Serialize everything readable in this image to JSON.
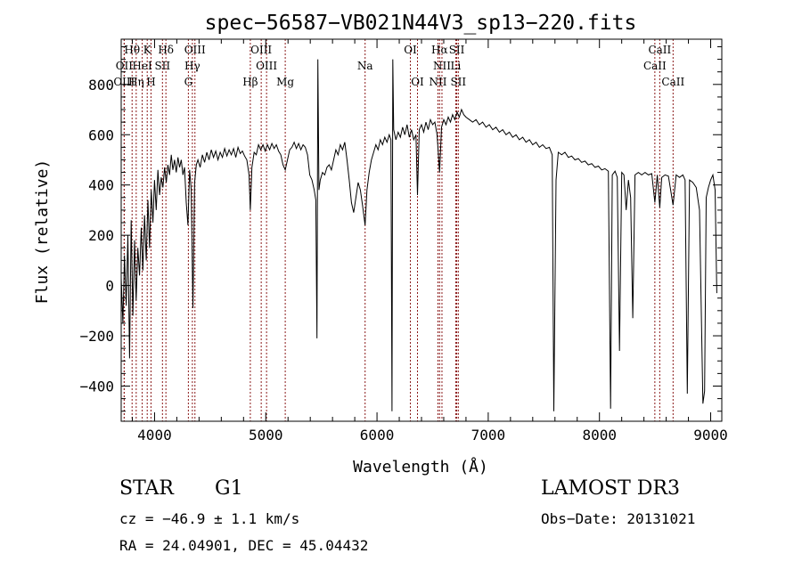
{
  "chart_data": {
    "type": "line",
    "title": "spec−56587−VB021N44V3_sp13−220.fits",
    "xlabel": "Wavelength (Å)",
    "ylabel": "Flux (relative)",
    "xlim": [
      3700,
      9100
    ],
    "ylim": [
      -540,
      980
    ],
    "xticks": [
      {
        "value": 4000,
        "label": "4000"
      },
      {
        "value": 5000,
        "label": "5000"
      },
      {
        "value": 6000,
        "label": "6000"
      },
      {
        "value": 7000,
        "label": "7000"
      },
      {
        "value": 8000,
        "label": "8000"
      },
      {
        "value": 9000,
        "label": "9000"
      }
    ],
    "yticks": [
      {
        "value": -400,
        "label": "−400"
      },
      {
        "value": -200,
        "label": "−200"
      },
      {
        "value": 0,
        "label": "0"
      },
      {
        "value": 200,
        "label": "200"
      },
      {
        "value": 400,
        "label": "400"
      },
      {
        "value": 600,
        "label": "600"
      },
      {
        "value": 800,
        "label": "800"
      }
    ],
    "line_color": "#000000",
    "marker_color": "#8b1a1a",
    "spectral_lines": [
      {
        "label": "Hθ",
        "wave": 3798,
        "row": 0
      },
      {
        "label": "K",
        "wave": 3934,
        "row": 0
      },
      {
        "label": "Hδ",
        "wave": 4102,
        "row": 0
      },
      {
        "label": "OIII",
        "wave": 4363,
        "row": 0
      },
      {
        "label": "OIII",
        "wave": 4959,
        "row": 0
      },
      {
        "label": "OI",
        "wave": 6300,
        "row": 0
      },
      {
        "label": "Hα",
        "wave": 6563,
        "row": 0
      },
      {
        "label": "SII",
        "wave": 6717,
        "row": 0
      },
      {
        "label": "CaII",
        "wave": 8542,
        "row": 0
      },
      {
        "label": "OII",
        "wave": 3727,
        "row": 1
      },
      {
        "label": "HeI",
        "wave": 3889,
        "row": 1
      },
      {
        "label": "SII",
        "wave": 4071,
        "row": 1
      },
      {
        "label": "Hγ",
        "wave": 4340,
        "row": 1
      },
      {
        "label": "OIII",
        "wave": 5007,
        "row": 1
      },
      {
        "label": "Na",
        "wave": 5893,
        "row": 1
      },
      {
        "label": "NII",
        "wave": 6584,
        "row": 1
      },
      {
        "label": "Li",
        "wave": 6708,
        "row": 1
      },
      {
        "label": "CaII",
        "wave": 8498,
        "row": 1
      },
      {
        "label": "OIII",
        "wave": 3727,
        "row": 2
      },
      {
        "label": "Hη",
        "wave": 3835,
        "row": 2
      },
      {
        "label": "H",
        "wave": 3968,
        "row": 2
      },
      {
        "label": "G",
        "wave": 4304,
        "row": 2
      },
      {
        "label": "Hβ",
        "wave": 4861,
        "row": 2
      },
      {
        "label": "Mg",
        "wave": 5175,
        "row": 2
      },
      {
        "label": "OI",
        "wave": 6364,
        "row": 2
      },
      {
        "label": "NII",
        "wave": 6548,
        "row": 2
      },
      {
        "label": "SII",
        "wave": 6731,
        "row": 2
      },
      {
        "label": "CaII",
        "wave": 8662,
        "row": 2
      }
    ],
    "series": [
      {
        "points": [
          [
            3700,
            30
          ],
          [
            3715,
            -150
          ],
          [
            3730,
            120
          ],
          [
            3745,
            -80
          ],
          [
            3760,
            200
          ],
          [
            3775,
            -290
          ],
          [
            3790,
            260
          ],
          [
            3805,
            -120
          ],
          [
            3820,
            180
          ],
          [
            3835,
            -60
          ],
          [
            3850,
            150
          ],
          [
            3865,
            40
          ],
          [
            3880,
            230
          ],
          [
            3895,
            60
          ],
          [
            3910,
            280
          ],
          [
            3925,
            100
          ],
          [
            3940,
            340
          ],
          [
            3955,
            150
          ],
          [
            3970,
            380
          ],
          [
            3985,
            250
          ],
          [
            4000,
            420
          ],
          [
            4015,
            300
          ],
          [
            4030,
            460
          ],
          [
            4045,
            360
          ],
          [
            4060,
            430
          ],
          [
            4075,
            390
          ],
          [
            4090,
            470
          ],
          [
            4105,
            410
          ],
          [
            4120,
            480
          ],
          [
            4135,
            440
          ],
          [
            4150,
            520
          ],
          [
            4165,
            460
          ],
          [
            4180,
            500
          ],
          [
            4195,
            450
          ],
          [
            4210,
            510
          ],
          [
            4225,
            470
          ],
          [
            4240,
            500
          ],
          [
            4255,
            440
          ],
          [
            4270,
            470
          ],
          [
            4285,
            330
          ],
          [
            4300,
            240
          ],
          [
            4315,
            460
          ],
          [
            4330,
            380
          ],
          [
            4345,
            -90
          ],
          [
            4360,
            410
          ],
          [
            4375,
            480
          ],
          [
            4390,
            500
          ],
          [
            4410,
            470
          ],
          [
            4430,
            520
          ],
          [
            4450,
            490
          ],
          [
            4470,
            530
          ],
          [
            4490,
            500
          ],
          [
            4510,
            540
          ],
          [
            4530,
            510
          ],
          [
            4550,
            535
          ],
          [
            4570,
            500
          ],
          [
            4590,
            530
          ],
          [
            4610,
            510
          ],
          [
            4630,
            545
          ],
          [
            4650,
            515
          ],
          [
            4670,
            540
          ],
          [
            4690,
            520
          ],
          [
            4710,
            545
          ],
          [
            4730,
            510
          ],
          [
            4750,
            550
          ],
          [
            4770,
            525
          ],
          [
            4790,
            535
          ],
          [
            4810,
            515
          ],
          [
            4830,
            500
          ],
          [
            4850,
            440
          ],
          [
            4861,
            300
          ],
          [
            4875,
            470
          ],
          [
            4895,
            530
          ],
          [
            4915,
            520
          ],
          [
            4935,
            560
          ],
          [
            4955,
            540
          ],
          [
            4975,
            560
          ],
          [
            4995,
            535
          ],
          [
            5015,
            560
          ],
          [
            5035,
            540
          ],
          [
            5055,
            565
          ],
          [
            5075,
            545
          ],
          [
            5095,
            560
          ],
          [
            5115,
            535
          ],
          [
            5135,
            520
          ],
          [
            5155,
            480
          ],
          [
            5175,
            460
          ],
          [
            5195,
            500
          ],
          [
            5215,
            540
          ],
          [
            5235,
            550
          ],
          [
            5255,
            570
          ],
          [
            5275,
            545
          ],
          [
            5295,
            565
          ],
          [
            5315,
            540
          ],
          [
            5335,
            560
          ],
          [
            5355,
            550
          ],
          [
            5375,
            520
          ],
          [
            5395,
            440
          ],
          [
            5415,
            420
          ],
          [
            5435,
            380
          ],
          [
            5450,
            340
          ],
          [
            5460,
            -210
          ],
          [
            5468,
            900
          ],
          [
            5478,
            380
          ],
          [
            5490,
            420
          ],
          [
            5510,
            450
          ],
          [
            5530,
            440
          ],
          [
            5550,
            470
          ],
          [
            5570,
            480
          ],
          [
            5590,
            460
          ],
          [
            5610,
            500
          ],
          [
            5630,
            540
          ],
          [
            5650,
            520
          ],
          [
            5670,
            560
          ],
          [
            5690,
            540
          ],
          [
            5710,
            570
          ],
          [
            5730,
            500
          ],
          [
            5750,
            420
          ],
          [
            5770,
            330
          ],
          [
            5790,
            290
          ],
          [
            5810,
            350
          ],
          [
            5830,
            410
          ],
          [
            5850,
            380
          ],
          [
            5870,
            320
          ],
          [
            5893,
            240
          ],
          [
            5910,
            380
          ],
          [
            5930,
            450
          ],
          [
            5950,
            500
          ],
          [
            5970,
            530
          ],
          [
            5990,
            560
          ],
          [
            6010,
            540
          ],
          [
            6030,
            580
          ],
          [
            6050,
            560
          ],
          [
            6070,
            590
          ],
          [
            6090,
            570
          ],
          [
            6110,
            600
          ],
          [
            6125,
            580
          ],
          [
            6135,
            -500
          ],
          [
            6142,
            900
          ],
          [
            6150,
            620
          ],
          [
            6170,
            580
          ],
          [
            6190,
            610
          ],
          [
            6210,
            590
          ],
          [
            6230,
            630
          ],
          [
            6250,
            600
          ],
          [
            6270,
            640
          ],
          [
            6290,
            590
          ],
          [
            6310,
            620
          ],
          [
            6330,
            580
          ],
          [
            6350,
            600
          ],
          [
            6364,
            360
          ],
          [
            6380,
            620
          ],
          [
            6400,
            640
          ],
          [
            6420,
            610
          ],
          [
            6440,
            650
          ],
          [
            6460,
            620
          ],
          [
            6480,
            660
          ],
          [
            6500,
            640
          ],
          [
            6520,
            650
          ],
          [
            6540,
            600
          ],
          [
            6563,
            450
          ],
          [
            6580,
            630
          ],
          [
            6600,
            660
          ],
          [
            6620,
            640
          ],
          [
            6640,
            670
          ],
          [
            6660,
            650
          ],
          [
            6680,
            680
          ],
          [
            6700,
            660
          ],
          [
            6720,
            690
          ],
          [
            6740,
            670
          ],
          [
            6760,
            700
          ],
          [
            6780,
            680
          ],
          [
            6800,
            670
          ],
          [
            6830,
            660
          ],
          [
            6860,
            650
          ],
          [
            6890,
            660
          ],
          [
            6920,
            640
          ],
          [
            6950,
            650
          ],
          [
            6980,
            630
          ],
          [
            7010,
            640
          ],
          [
            7040,
            620
          ],
          [
            7070,
            630
          ],
          [
            7100,
            610
          ],
          [
            7130,
            620
          ],
          [
            7160,
            600
          ],
          [
            7190,
            610
          ],
          [
            7220,
            590
          ],
          [
            7250,
            600
          ],
          [
            7280,
            580
          ],
          [
            7310,
            590
          ],
          [
            7340,
            570
          ],
          [
            7370,
            580
          ],
          [
            7400,
            560
          ],
          [
            7430,
            570
          ],
          [
            7460,
            550
          ],
          [
            7490,
            560
          ],
          [
            7520,
            545
          ],
          [
            7550,
            550
          ],
          [
            7575,
            520
          ],
          [
            7590,
            -500
          ],
          [
            7610,
            420
          ],
          [
            7630,
            530
          ],
          [
            7660,
            520
          ],
          [
            7690,
            530
          ],
          [
            7720,
            510
          ],
          [
            7750,
            515
          ],
          [
            7780,
            500
          ],
          [
            7810,
            505
          ],
          [
            7840,
            490
          ],
          [
            7870,
            495
          ],
          [
            7900,
            480
          ],
          [
            7930,
            485
          ],
          [
            7960,
            470
          ],
          [
            7990,
            475
          ],
          [
            8020,
            460
          ],
          [
            8050,
            465
          ],
          [
            8080,
            455
          ],
          [
            8100,
            -490
          ],
          [
            8115,
            440
          ],
          [
            8140,
            455
          ],
          [
            8160,
            430
          ],
          [
            8180,
            -260
          ],
          [
            8200,
            450
          ],
          [
            8220,
            440
          ],
          [
            8240,
            300
          ],
          [
            8260,
            420
          ],
          [
            8280,
            350
          ],
          [
            8300,
            -130
          ],
          [
            8320,
            440
          ],
          [
            8350,
            450
          ],
          [
            8380,
            440
          ],
          [
            8410,
            450
          ],
          [
            8440,
            440
          ],
          [
            8470,
            445
          ],
          [
            8498,
            330
          ],
          [
            8520,
            440
          ],
          [
            8542,
            310
          ],
          [
            8560,
            430
          ],
          [
            8590,
            440
          ],
          [
            8620,
            435
          ],
          [
            8662,
            320
          ],
          [
            8690,
            440
          ],
          [
            8720,
            430
          ],
          [
            8750,
            440
          ],
          [
            8770,
            420
          ],
          [
            8790,
            -430
          ],
          [
            8810,
            420
          ],
          [
            8840,
            410
          ],
          [
            8870,
            390
          ],
          [
            8900,
            300
          ],
          [
            8930,
            -470
          ],
          [
            8945,
            -420
          ],
          [
            8960,
            350
          ],
          [
            8980,
            390
          ],
          [
            9000,
            420
          ],
          [
            9020,
            440
          ],
          [
            9040,
            380
          ],
          [
            9055,
            -30
          ]
        ]
      }
    ]
  },
  "info": {
    "object_class": "STAR",
    "subclass": "G1",
    "survey": "LAMOST DR3",
    "cz": "cz = −46.9 ± 1.1 km/s",
    "obs_date": "Obs−Date: 20131021",
    "radec": "RA =  24.04901, DEC =  45.04432"
  }
}
